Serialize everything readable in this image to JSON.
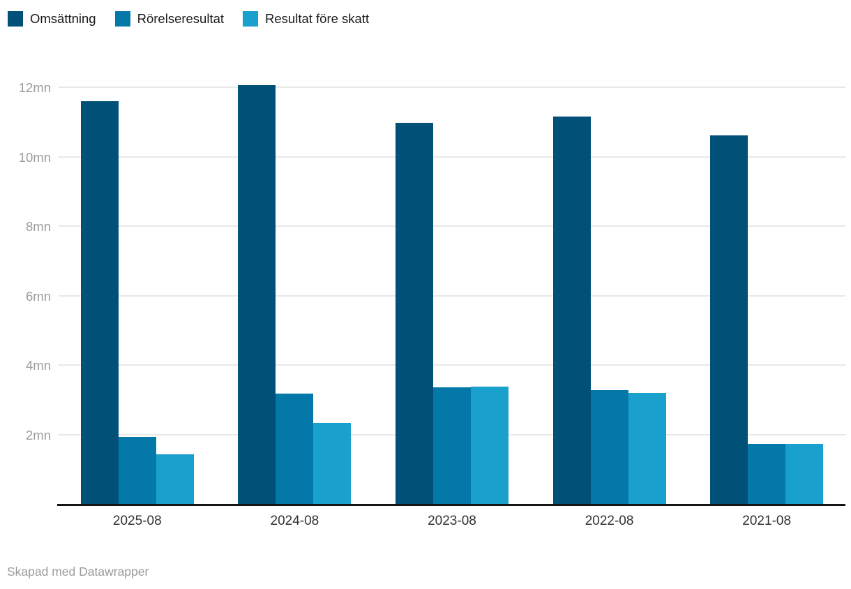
{
  "chart_data": {
    "type": "bar",
    "title": "",
    "xlabel": "",
    "ylabel": "",
    "unit": "mn",
    "categories": [
      "2025-08",
      "2024-08",
      "2023-08",
      "2022-08",
      "2021-08"
    ],
    "series": [
      {
        "name": "Omsättning",
        "color": "#015078",
        "values": [
          11.59,
          12.06,
          10.97,
          11.16,
          10.62
        ]
      },
      {
        "name": "Rörelseresultat",
        "color": "#0478a8",
        "values": [
          1.93,
          3.17,
          3.35,
          3.28,
          1.72
        ]
      },
      {
        "name": "Resultat före skatt",
        "color": "#1aa0cd",
        "values": [
          1.43,
          2.33,
          3.38,
          3.19,
          1.72
        ]
      }
    ],
    "ylim": [
      0,
      12
    ],
    "y_ticks": [
      "2mn",
      "4mn",
      "6mn",
      "8mn",
      "10mn",
      "12mn"
    ],
    "y_tick_values": [
      2,
      4,
      6,
      8,
      10,
      12
    ],
    "grid": "horizontal",
    "legend_position": "top"
  },
  "footer": {
    "attribution": "Skapad med Datawrapper"
  },
  "colors": {
    "gridline": "#e8e8e8",
    "axis": "#141414",
    "ytick_text": "#9c9c9c",
    "xtick_text": "#333333",
    "legend_text": "#1a1a1a",
    "footer_text": "#9b9b9b"
  }
}
